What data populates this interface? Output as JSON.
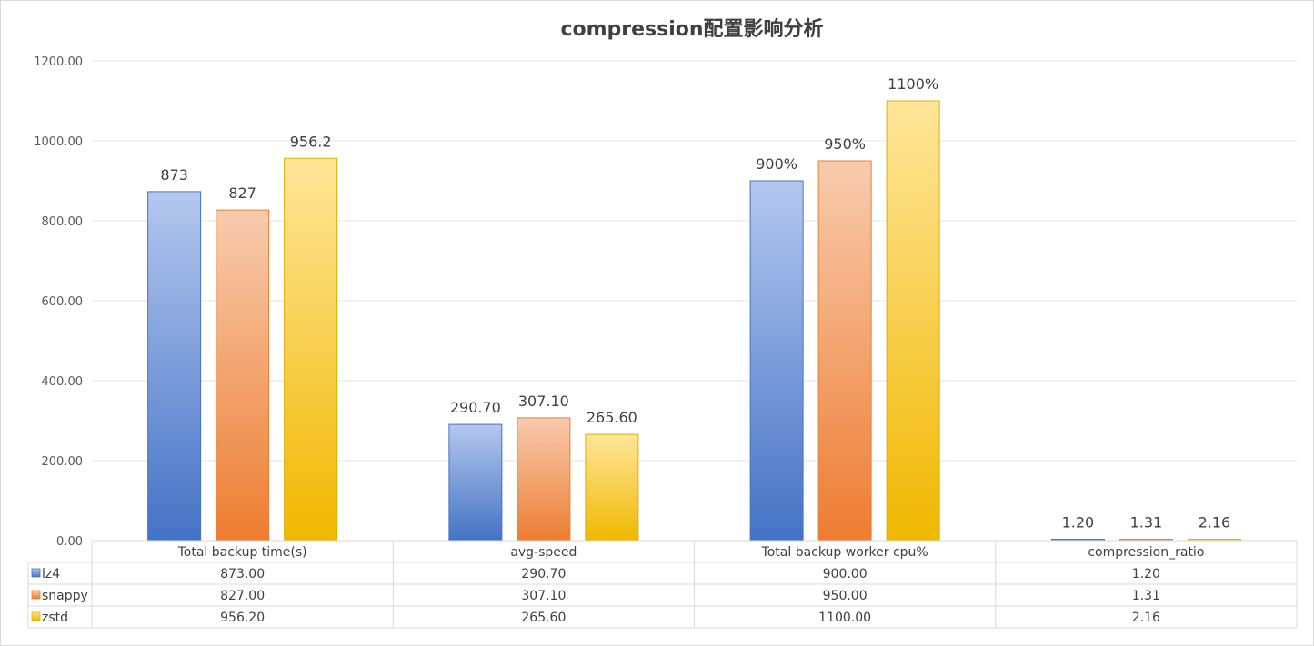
{
  "chart_data": {
    "type": "bar",
    "title": "compression配置影响分析",
    "categories": [
      "Total backup time(s)",
      "avg-speed",
      "Total backup worker cpu%",
      "compression_ratio"
    ],
    "series": [
      {
        "name": "lz4",
        "values": [
          873,
          290.7,
          900,
          1.2
        ],
        "colors": [
          "#b4c7ef",
          "#4472c4"
        ],
        "border": "#4472c4",
        "labels": [
          "873",
          "290.70",
          "900%",
          "1.20"
        ],
        "table": [
          "873.00",
          "290.70",
          "900.00",
          "1.20"
        ]
      },
      {
        "name": "snappy",
        "values": [
          827,
          307.1,
          950,
          1.31
        ],
        "colors": [
          "#f8cbad",
          "#ed7d31"
        ],
        "border": "#ed7d31",
        "labels": [
          "827",
          "307.10",
          "950%",
          "1.31"
        ],
        "table": [
          "827.00",
          "307.10",
          "950.00",
          "1.31"
        ]
      },
      {
        "name": "zstd",
        "values": [
          956.2,
          265.6,
          1100,
          2.16
        ],
        "colors": [
          "#ffe699",
          "#f0b800"
        ],
        "border": "#e0ae00",
        "labels": [
          "956.2",
          "265.60",
          "1100%",
          "2.16"
        ],
        "table": [
          "956.20",
          "265.60",
          "1100.00",
          "2.16"
        ]
      }
    ],
    "ylim": [
      0,
      1200
    ],
    "yticks": [
      0,
      200,
      400,
      600,
      800,
      1000,
      1200
    ],
    "ytick_labels": [
      "0.00",
      "200.00",
      "400.00",
      "600.00",
      "800.00",
      "1000.00",
      "1200.00"
    ],
    "grid": true,
    "legend": "data-table"
  }
}
